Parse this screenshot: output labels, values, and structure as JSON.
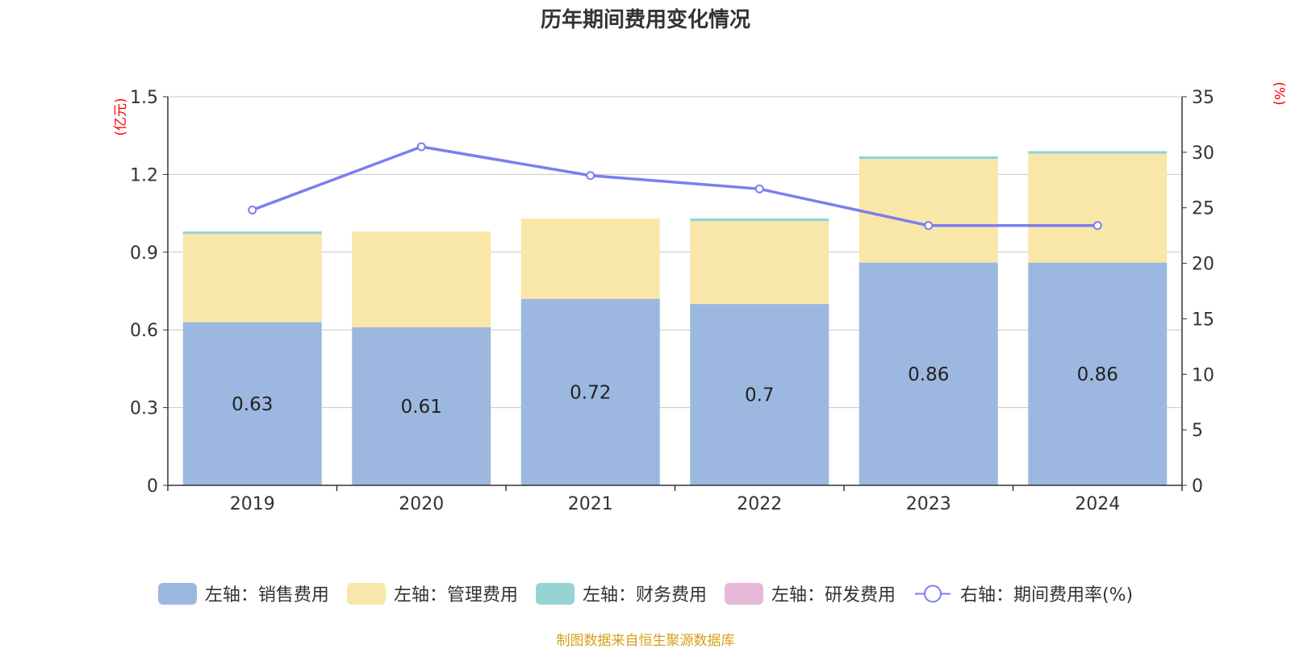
{
  "title": "历年期间费用变化情况",
  "source": "制图数据来自恒生聚源数据库",
  "colors": {
    "sales": "#9db8e0",
    "admin": "#f8e7a8",
    "finance": "#96d3d3",
    "rd": "#e8b8d8",
    "line": "#7b7ef0",
    "axis_unit": "#ff0000",
    "grid": "#c8c8c8"
  },
  "legend": [
    {
      "label": "左轴：销售费用",
      "color": "#9db8e0",
      "kind": "bar"
    },
    {
      "label": "左轴：管理费用",
      "color": "#f8e7a8",
      "kind": "bar"
    },
    {
      "label": "左轴：财务费用",
      "color": "#96d3d3",
      "kind": "bar"
    },
    {
      "label": "左轴：研发费用",
      "color": "#e8b8d8",
      "kind": "bar"
    },
    {
      "label": "右轴：期间费用率(%)",
      "color": "#7b7ef0",
      "kind": "line"
    }
  ],
  "chart_data": {
    "type": "bar",
    "categories": [
      "2019",
      "2020",
      "2021",
      "2022",
      "2023",
      "2024"
    ],
    "left_axis": {
      "unit": "(亿元)",
      "ylim": [
        0,
        1.5
      ],
      "ticks": [
        "0",
        "0.3",
        "0.6",
        "0.9",
        "1.2",
        "1.5"
      ]
    },
    "right_axis": {
      "unit": "(%)",
      "ylim": [
        0,
        35
      ],
      "ticks": [
        "0",
        "5",
        "10",
        "15",
        "20",
        "25",
        "30",
        "35"
      ]
    },
    "series": [
      {
        "name": "左轴：销售费用",
        "axis": "left",
        "stack": true,
        "values": [
          0.63,
          0.61,
          0.72,
          0.7,
          0.86,
          0.86
        ],
        "labels": [
          "0.63",
          "0.61",
          "0.72",
          "0.7",
          "0.86",
          "0.86"
        ]
      },
      {
        "name": "左轴：管理费用",
        "axis": "left",
        "stack": true,
        "values": [
          0.34,
          0.37,
          0.31,
          0.32,
          0.4,
          0.42
        ]
      },
      {
        "name": "左轴：财务费用",
        "axis": "left",
        "stack": true,
        "values": [
          0.01,
          0.0,
          0.0,
          0.01,
          0.01,
          0.01
        ]
      },
      {
        "name": "左轴：研发费用",
        "axis": "left",
        "stack": true,
        "values": [
          0,
          0,
          0,
          0,
          0,
          0
        ]
      },
      {
        "name": "右轴：期间费用率(%)",
        "axis": "right",
        "type": "line",
        "values": [
          24.8,
          30.5,
          27.9,
          26.7,
          23.4,
          23.4
        ]
      }
    ],
    "grid": true,
    "legend_position": "bottom"
  }
}
